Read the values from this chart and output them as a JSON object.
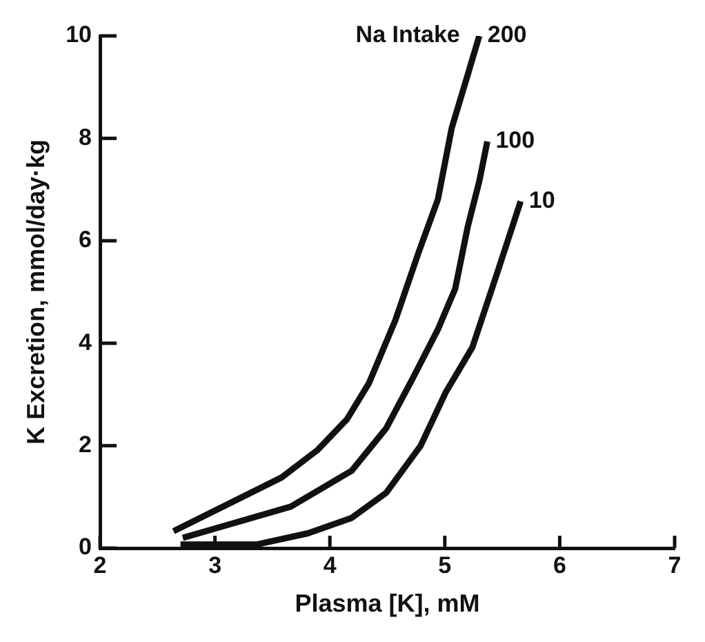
{
  "chart_data": {
    "type": "line",
    "xlabel": "Plasma [K], mM",
    "ylabel": "K Excretion, mmol/day·kg",
    "annotations": [
      "Na Intake"
    ],
    "xlim": [
      2,
      7
    ],
    "xticks": [
      2,
      3,
      4,
      5,
      6,
      7
    ],
    "ylim": [
      0,
      10
    ],
    "yticks": [
      0,
      2,
      4,
      6,
      8,
      10
    ],
    "grid": false,
    "legend": false,
    "marker": "none",
    "line_style": "solid",
    "series": [
      {
        "name": "200",
        "color": "#111111",
        "x": [
          2.64,
          3.58,
          3.89,
          4.15,
          4.34,
          4.57,
          4.77,
          4.94,
          5.06,
          5.19,
          5.3
        ],
        "values": [
          0.33,
          1.38,
          1.91,
          2.52,
          3.22,
          4.45,
          5.76,
          6.81,
          8.2,
          9.17,
          10
        ]
      },
      {
        "name": "100",
        "color": "#111111",
        "x": [
          2.72,
          3.66,
          4.19,
          4.49,
          4.72,
          4.94,
          5.09,
          5.2,
          5.3,
          5.37
        ],
        "values": [
          0.2,
          0.81,
          1.51,
          2.34,
          3.31,
          4.27,
          5.06,
          6.28,
          7.16,
          7.94
        ]
      },
      {
        "name": "10",
        "color": "#111111",
        "x": [
          2.7,
          3.36,
          3.81,
          4.19,
          4.49,
          4.79,
          5.01,
          5.24,
          5.46,
          5.66
        ],
        "values": [
          0.07,
          0.07,
          0.29,
          0.59,
          1.08,
          2.0,
          3.05,
          3.92,
          5.4,
          6.77
        ]
      }
    ]
  }
}
